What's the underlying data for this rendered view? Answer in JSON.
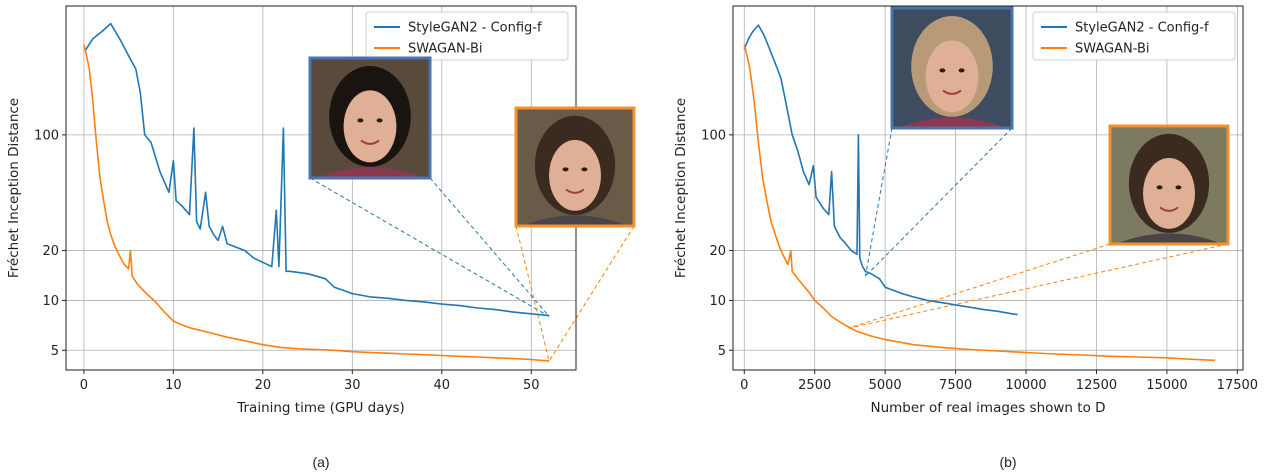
{
  "colors": {
    "stylegan2": "#1f77b4",
    "swagan": "#ff7f0e",
    "grid": "#b0b0b0"
  },
  "chart_data": [
    {
      "type": "line",
      "caption": "(a)",
      "xlabel": "Training time (GPU days)",
      "ylabel": "Fréchet Inception Distance",
      "xlim": [
        -2,
        55
      ],
      "ylim_log": [
        3.8,
        600
      ],
      "yscale": "log",
      "xticks": [
        0,
        10,
        20,
        30,
        40,
        50
      ],
      "yticks": [
        5,
        10,
        20,
        100
      ],
      "grid": true,
      "legend_position": "top-right",
      "insets": [
        {
          "series": "StyleGAN2 - Config-f",
          "points_at": [
            52,
            8.0
          ],
          "description": "portrait"
        },
        {
          "series": "SWAGAN-Bi",
          "points_at": [
            52,
            4.3
          ],
          "description": "portrait"
        }
      ],
      "series": [
        {
          "name": "StyleGAN2 - Config-f",
          "color": "#1f77b4",
          "points": [
            [
              0.1,
              320
            ],
            [
              1,
              380
            ],
            [
              2,
              420
            ],
            [
              3,
              470
            ],
            [
              4,
              380
            ],
            [
              5,
              300
            ],
            [
              5.8,
              250
            ],
            [
              6.3,
              180
            ],
            [
              6.8,
              100
            ],
            [
              7.5,
              90
            ],
            [
              8.5,
              60
            ],
            [
              9.5,
              45
            ],
            [
              10,
              70
            ],
            [
              10.3,
              40
            ],
            [
              11,
              37
            ],
            [
              11.8,
              33
            ],
            [
              12.3,
              110
            ],
            [
              12.6,
              30
            ],
            [
              13,
              27
            ],
            [
              13.6,
              45
            ],
            [
              14,
              28
            ],
            [
              14.5,
              25
            ],
            [
              15,
              23
            ],
            [
              15.5,
              28
            ],
            [
              16,
              22
            ],
            [
              17,
              21
            ],
            [
              18,
              20
            ],
            [
              19,
              18
            ],
            [
              20,
              17
            ],
            [
              21,
              16
            ],
            [
              21.5,
              35
            ],
            [
              21.8,
              16
            ],
            [
              22.3,
              110
            ],
            [
              22.6,
              15
            ],
            [
              23,
              15
            ],
            [
              25,
              14.5
            ],
            [
              26,
              14
            ],
            [
              27,
              13.5
            ],
            [
              28,
              12
            ],
            [
              29,
              11.5
            ],
            [
              30,
              11
            ],
            [
              32,
              10.5
            ],
            [
              34,
              10.3
            ],
            [
              36,
              10
            ],
            [
              38,
              9.8
            ],
            [
              40,
              9.5
            ],
            [
              42,
              9.3
            ],
            [
              44,
              9
            ],
            [
              46,
              8.8
            ],
            [
              48,
              8.5
            ],
            [
              50,
              8.3
            ],
            [
              51,
              8.2
            ],
            [
              52,
              8.1
            ]
          ]
        },
        {
          "name": "SWAGAN-Bi",
          "color": "#ff7f0e",
          "points": [
            [
              0,
              350
            ],
            [
              0.3,
              300
            ],
            [
              0.6,
              250
            ],
            [
              1,
              160
            ],
            [
              1.4,
              90
            ],
            [
              1.8,
              55
            ],
            [
              2.2,
              40
            ],
            [
              2.6,
              30
            ],
            [
              3,
              25
            ],
            [
              3.5,
              21
            ],
            [
              4,
              18.5
            ],
            [
              4.5,
              16.5
            ],
            [
              5,
              15.5
            ],
            [
              5.2,
              20
            ],
            [
              5.4,
              14
            ],
            [
              6,
              12.5
            ],
            [
              7,
              11
            ],
            [
              8,
              9.8
            ],
            [
              9,
              8.5
            ],
            [
              10,
              7.5
            ],
            [
              11,
              7.1
            ],
            [
              12,
              6.8
            ],
            [
              14,
              6.4
            ],
            [
              16,
              6
            ],
            [
              18,
              5.7
            ],
            [
              20,
              5.4
            ],
            [
              22,
              5.2
            ],
            [
              24,
              5.1
            ],
            [
              26,
              5.05
            ],
            [
              28,
              5
            ],
            [
              30,
              4.9
            ],
            [
              32,
              4.85
            ],
            [
              34,
              4.8
            ],
            [
              36,
              4.75
            ],
            [
              38,
              4.7
            ],
            [
              40,
              4.65
            ],
            [
              42,
              4.6
            ],
            [
              44,
              4.55
            ],
            [
              46,
              4.5
            ],
            [
              48,
              4.45
            ],
            [
              50,
              4.4
            ],
            [
              51,
              4.35
            ],
            [
              52,
              4.3
            ]
          ]
        }
      ]
    },
    {
      "type": "line",
      "caption": "(b)",
      "xlabel": "Number of real images shown to D",
      "ylabel": "Fréchet Inception Distance",
      "xlim": [
        -400,
        17700
      ],
      "ylim_log": [
        3.8,
        600
      ],
      "yscale": "log",
      "xticks": [
        0,
        2500,
        5000,
        7500,
        10000,
        12500,
        15000,
        17500
      ],
      "yticks": [
        5,
        10,
        20,
        100
      ],
      "grid": true,
      "legend_position": "top-right",
      "insets": [
        {
          "series": "StyleGAN2 - Config-f",
          "points_at": [
            4300,
            14
          ],
          "description": "portrait"
        },
        {
          "series": "SWAGAN-Bi",
          "points_at": [
            3700,
            6.8
          ],
          "description": "portrait"
        }
      ],
      "series": [
        {
          "name": "StyleGAN2 - Config-f",
          "color": "#1f77b4",
          "points": [
            [
              0,
              330
            ],
            [
              150,
              380
            ],
            [
              300,
              420
            ],
            [
              500,
              460
            ],
            [
              700,
              400
            ],
            [
              900,
              330
            ],
            [
              1100,
              270
            ],
            [
              1300,
              220
            ],
            [
              1500,
              150
            ],
            [
              1700,
              100
            ],
            [
              1900,
              80
            ],
            [
              2100,
              60
            ],
            [
              2300,
              50
            ],
            [
              2450,
              65
            ],
            [
              2550,
              42
            ],
            [
              2800,
              36
            ],
            [
              3000,
              33
            ],
            [
              3100,
              60
            ],
            [
              3200,
              28
            ],
            [
              3400,
              24
            ],
            [
              3600,
              22
            ],
            [
              3800,
              20
            ],
            [
              4000,
              19
            ],
            [
              4050,
              100
            ],
            [
              4100,
              18
            ],
            [
              4200,
              16
            ],
            [
              4300,
              15
            ],
            [
              4500,
              14.5
            ],
            [
              4800,
              13.5
            ],
            [
              5000,
              12
            ],
            [
              5300,
              11.5
            ],
            [
              5600,
              11
            ],
            [
              6000,
              10.5
            ],
            [
              6500,
              10
            ],
            [
              7000,
              9.7
            ],
            [
              7500,
              9.4
            ],
            [
              8000,
              9.1
            ],
            [
              8500,
              8.8
            ],
            [
              9000,
              8.6
            ],
            [
              9500,
              8.3
            ],
            [
              9700,
              8.2
            ]
          ]
        },
        {
          "name": "SWAGAN-Bi",
          "color": "#ff7f0e",
          "points": [
            [
              0,
              350
            ],
            [
              100,
              300
            ],
            [
              200,
              250
            ],
            [
              350,
              160
            ],
            [
              500,
              90
            ],
            [
              650,
              55
            ],
            [
              800,
              40
            ],
            [
              950,
              30
            ],
            [
              1100,
              25
            ],
            [
              1250,
              21
            ],
            [
              1400,
              18.5
            ],
            [
              1550,
              16.5
            ],
            [
              1650,
              20
            ],
            [
              1700,
              15
            ],
            [
              1900,
              13.5
            ],
            [
              2100,
              12.3
            ],
            [
              2300,
              11.2
            ],
            [
              2500,
              10
            ],
            [
              2800,
              9
            ],
            [
              3100,
              8
            ],
            [
              3400,
              7.4
            ],
            [
              3700,
              6.9
            ],
            [
              4000,
              6.5
            ],
            [
              4500,
              6.1
            ],
            [
              5000,
              5.8
            ],
            [
              5500,
              5.6
            ],
            [
              6000,
              5.4
            ],
            [
              7000,
              5.2
            ],
            [
              8000,
              5.05
            ],
            [
              9000,
              4.95
            ],
            [
              10000,
              4.85
            ],
            [
              11000,
              4.75
            ],
            [
              12000,
              4.68
            ],
            [
              13000,
              4.6
            ],
            [
              14000,
              4.55
            ],
            [
              15000,
              4.5
            ],
            [
              16000,
              4.4
            ],
            [
              16700,
              4.35
            ]
          ]
        }
      ]
    }
  ]
}
